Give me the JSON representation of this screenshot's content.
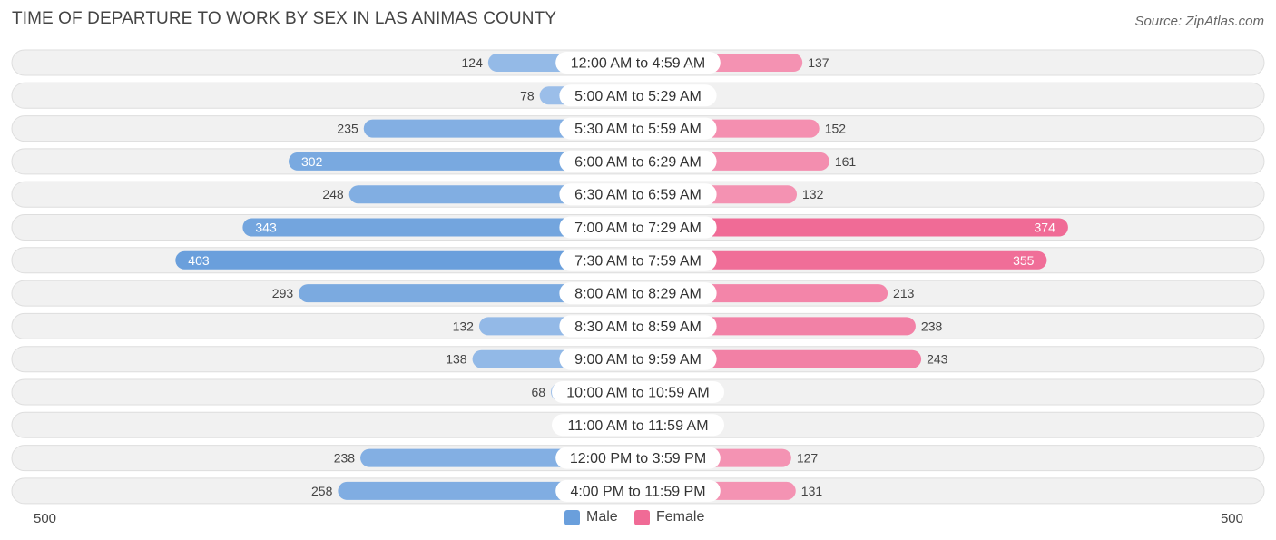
{
  "header": {
    "title": "TIME OF DEPARTURE TO WORK BY SEX IN LAS ANIMAS COUNTY",
    "source": "Source: ZipAtlas.com"
  },
  "axis": {
    "left_label": "500",
    "right_label": "500"
  },
  "legend": {
    "male": "Male",
    "female": "Female"
  },
  "colors": {
    "male": "#6a9fdc",
    "male_light": "#a7c6ec",
    "female": "#f06b96",
    "female_light": "#f6a8c2",
    "row_bg": "#f1f1f1",
    "row_border": "#dedede"
  },
  "chart_data": {
    "type": "bar",
    "orientation": "horizontal-diverging",
    "title": "TIME OF DEPARTURE TO WORK BY SEX IN LAS ANIMAS COUNTY",
    "xlim": [
      -500,
      500
    ],
    "legend_position": "bottom-center",
    "categories": [
      "12:00 AM to 4:59 AM",
      "5:00 AM to 5:29 AM",
      "5:30 AM to 5:59 AM",
      "6:00 AM to 6:29 AM",
      "6:30 AM to 6:59 AM",
      "7:00 AM to 7:29 AM",
      "7:30 AM to 7:59 AM",
      "8:00 AM to 8:29 AM",
      "8:30 AM to 8:59 AM",
      "9:00 AM to 9:59 AM",
      "10:00 AM to 10:59 AM",
      "11:00 AM to 11:59 AM",
      "12:00 PM to 3:59 PM",
      "4:00 PM to 11:59 PM"
    ],
    "series": [
      {
        "name": "Male",
        "values": [
          124,
          78,
          235,
          302,
          248,
          343,
          403,
          293,
          132,
          138,
          68,
          4,
          238,
          258
        ]
      },
      {
        "name": "Female",
        "values": [
          137,
          0,
          152,
          161,
          132,
          374,
          355,
          213,
          238,
          243,
          18,
          13,
          127,
          131
        ]
      }
    ]
  }
}
